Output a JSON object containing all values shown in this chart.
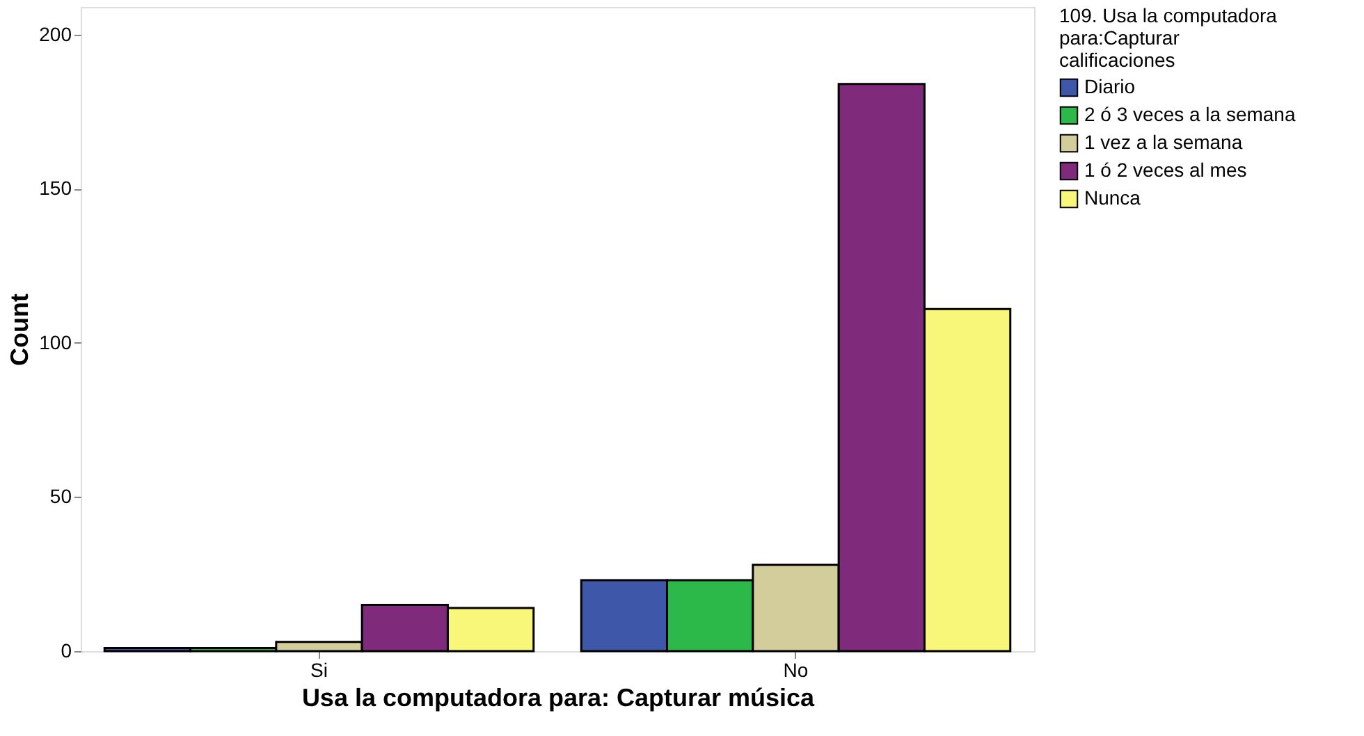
{
  "chart_data": {
    "type": "bar",
    "xlabel": "Usa la computadora para: Capturar música",
    "ylabel": "Count",
    "legend_title": "109. Usa la computadora para:Capturar calificaciones",
    "categories": [
      "Si",
      "No"
    ],
    "series": [
      {
        "name": "Diario",
        "color": "#3f57a8",
        "values": [
          1,
          23
        ]
      },
      {
        "name": "2 ó 3 veces a la semana",
        "color": "#2db84a",
        "values": [
          1,
          23
        ]
      },
      {
        "name": "1 vez a la semana",
        "color": "#d3cd9c",
        "values": [
          3,
          28
        ]
      },
      {
        "name": "1 ó 2 veces al mes",
        "color": "#7f2a7b",
        "values": [
          15,
          184
        ]
      },
      {
        "name": "Nunca",
        "color": "#f9f77a",
        "values": [
          14,
          111
        ]
      }
    ],
    "ylim": [
      0,
      209
    ],
    "yticks": [
      0,
      50,
      100,
      150,
      200
    ],
    "grid": false,
    "legend": "top right"
  }
}
